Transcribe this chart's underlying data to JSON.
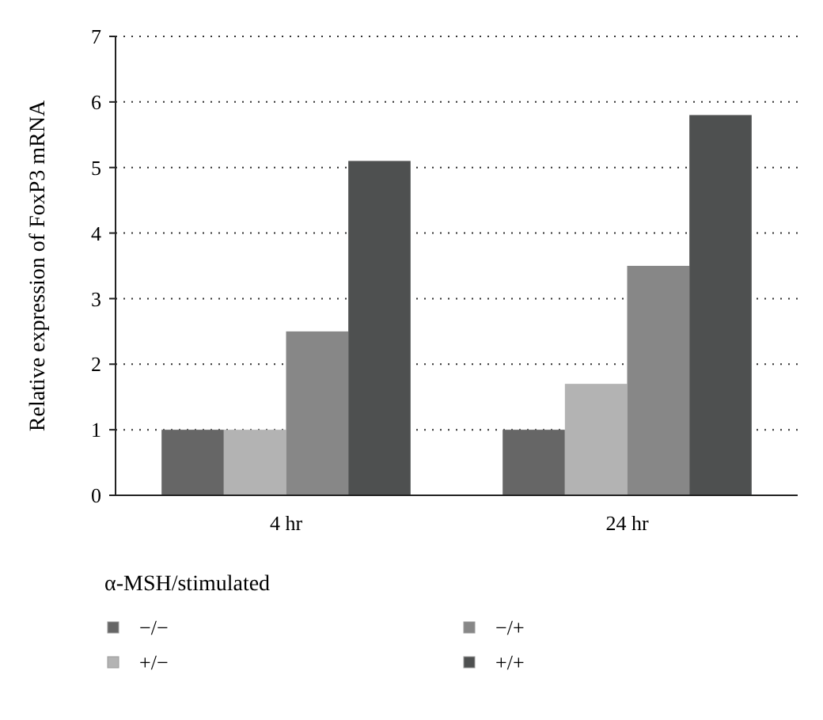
{
  "chart_data": {
    "type": "bar",
    "ylabel": "Relative expression of FoxP3 mRNA",
    "legend_title": "α-MSH/stimulated",
    "categories": [
      "4 hr",
      "24 hr"
    ],
    "series": [
      {
        "name": "−/−",
        "color": "#666666",
        "values": [
          1,
          1
        ]
      },
      {
        "name": "+/−",
        "color": "#b3b3b3",
        "values": [
          1,
          1.7
        ]
      },
      {
        "name": "−/+",
        "color": "#878787",
        "values": [
          2.5,
          3.5
        ]
      },
      {
        "name": "+/+",
        "color": "#4e5050",
        "values": [
          5.1,
          5.8
        ]
      }
    ],
    "ylim": [
      0,
      7
    ],
    "yticks": [
      0,
      1,
      2,
      3,
      4,
      5,
      6,
      7
    ],
    "grid": "y",
    "legend": "bottom"
  }
}
